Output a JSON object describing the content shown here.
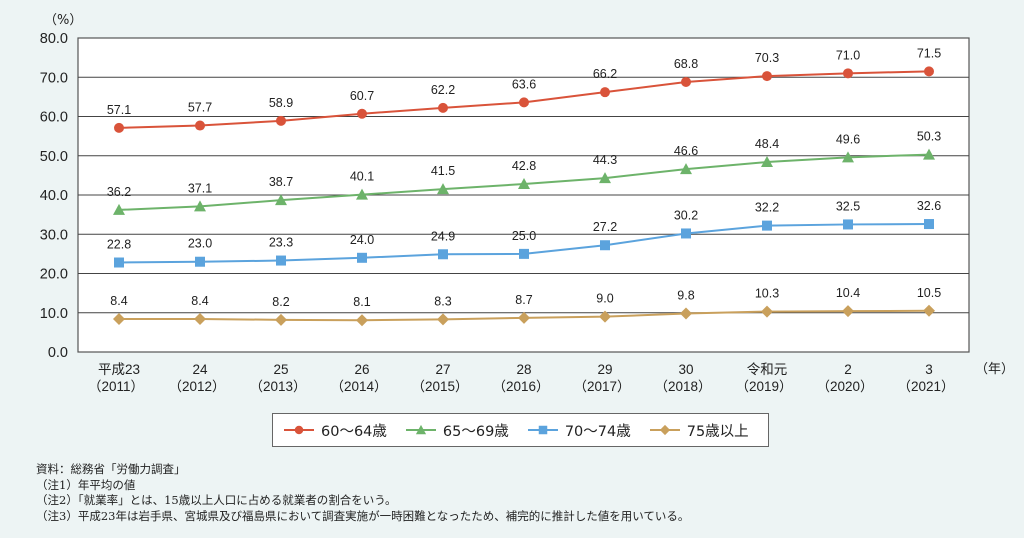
{
  "chart_data": {
    "type": "line",
    "title": "",
    "ylabel": "（%）",
    "xlabel": "（年）",
    "ylim": [
      0,
      80
    ],
    "yticks": [
      "0.0",
      "10.0",
      "20.0",
      "30.0",
      "40.0",
      "50.0",
      "60.0",
      "70.0",
      "80.0"
    ],
    "ytick_values": [
      0,
      10,
      20,
      30,
      40,
      50,
      60,
      70,
      80
    ],
    "grid": true,
    "legend_position": "bottom-center",
    "categories": [
      {
        "era": "平成23",
        "year": "（2011）"
      },
      {
        "era": "24",
        "year": "（2012）"
      },
      {
        "era": "25",
        "year": "（2013）"
      },
      {
        "era": "26",
        "year": "（2014）"
      },
      {
        "era": "27",
        "year": "（2015）"
      },
      {
        "era": "28",
        "year": "（2016）"
      },
      {
        "era": "29",
        "year": "（2017）"
      },
      {
        "era": "30",
        "year": "（2018）"
      },
      {
        "era": "令和元",
        "year": "（2019）"
      },
      {
        "era": "2",
        "year": "（2020）"
      },
      {
        "era": "3",
        "year": "（2021）"
      }
    ],
    "series": [
      {
        "name": "60～64歳",
        "marker": "circle",
        "color": "#d9533a",
        "values": [
          57.1,
          57.7,
          58.9,
          60.7,
          62.2,
          63.6,
          66.2,
          68.8,
          70.3,
          71.0,
          71.5
        ],
        "labels": [
          "57.1",
          "57.7",
          "58.9",
          "60.7",
          "62.2",
          "63.6",
          "66.2",
          "68.8",
          "70.3",
          "71.0",
          "71.5"
        ]
      },
      {
        "name": "65～69歳",
        "marker": "triangle",
        "color": "#6db36a",
        "values": [
          36.2,
          37.1,
          38.7,
          40.1,
          41.5,
          42.8,
          44.3,
          46.6,
          48.4,
          49.6,
          50.3
        ],
        "labels": [
          "36.2",
          "37.1",
          "38.7",
          "40.1",
          "41.5",
          "42.8",
          "44.3",
          "46.6",
          "48.4",
          "49.6",
          "50.3"
        ]
      },
      {
        "name": "70～74歳",
        "marker": "square",
        "color": "#5ba3dd",
        "values": [
          22.8,
          23.0,
          23.3,
          24.0,
          24.9,
          25.0,
          27.2,
          30.2,
          32.2,
          32.5,
          32.6
        ],
        "labels": [
          "22.8",
          "23.0",
          "23.3",
          "24.0",
          "24.9",
          "25.0",
          "27.2",
          "30.2",
          "32.2",
          "32.5",
          "32.6"
        ]
      },
      {
        "name": "75歳以上",
        "marker": "diamond",
        "color": "#c9a05c",
        "values": [
          8.4,
          8.4,
          8.2,
          8.1,
          8.3,
          8.7,
          9.0,
          9.8,
          10.3,
          10.4,
          10.5
        ],
        "labels": [
          "8.4",
          "8.4",
          "8.2",
          "8.1",
          "8.3",
          "8.7",
          "9.0",
          "9.8",
          "10.3",
          "10.4",
          "10.5"
        ]
      }
    ]
  },
  "notes": [
    "資料：総務省「労働力調査」",
    "（注1）年平均の値",
    "（注2）「就業率」とは、15歳以上人口に占める就業者の割合をいう。",
    "（注3）平成23年は岩手県、宮城県及び福島県において調査実施が一時困難となったため、補完的に推計した値を用いている。"
  ]
}
